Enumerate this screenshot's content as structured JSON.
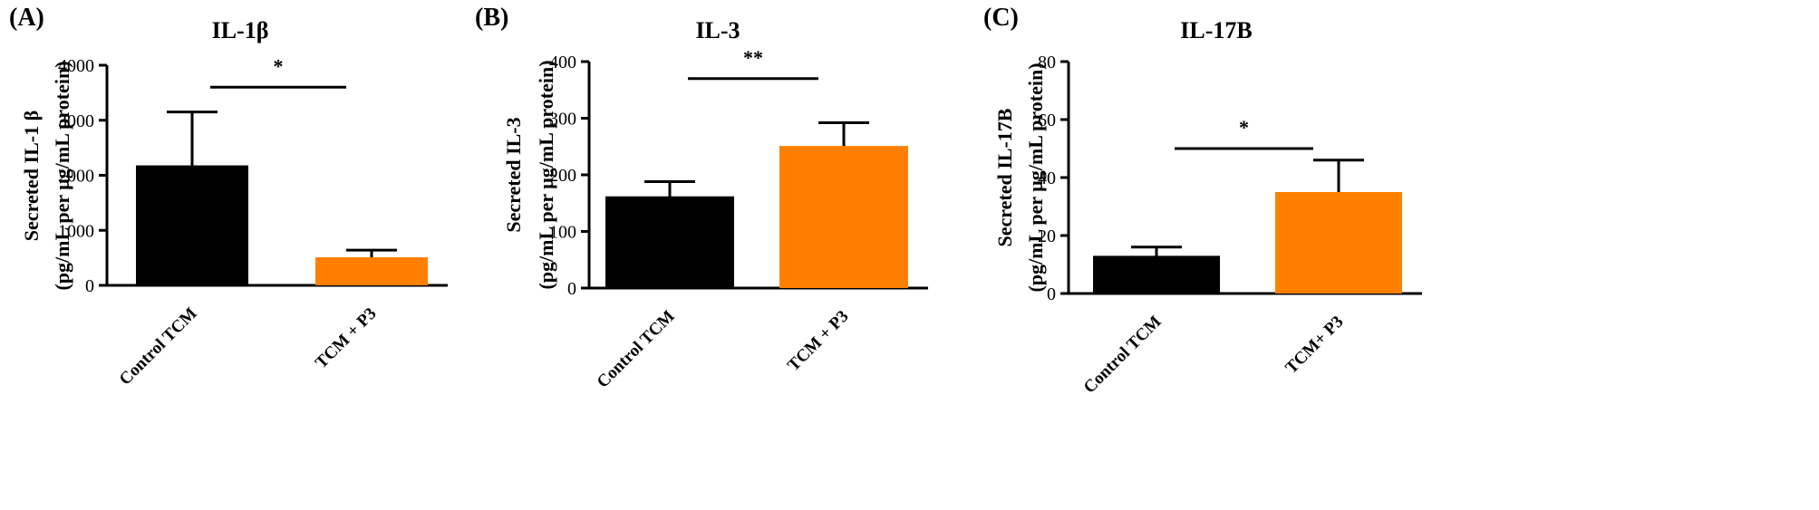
{
  "colors": {
    "control": "#000000",
    "treated": "#FF8000",
    "axis": "#000000"
  },
  "chart_data": [
    {
      "type": "bar",
      "panel": "(A)",
      "title": "IL-1β",
      "ylabel_line1": "Secreted IL-1 β",
      "ylabel_line2": "(pg/mL per μg/mL protein)",
      "categories": [
        "Control TCM",
        "TCM + P3"
      ],
      "values": [
        2180,
        510
      ],
      "errors": [
        970,
        130
      ],
      "ylim": [
        0,
        4000
      ],
      "yticks": [
        0,
        1000,
        2000,
        3000,
        4000
      ],
      "significance": "*",
      "sig_value": 3600
    },
    {
      "type": "bar",
      "panel": "(B)",
      "title": "IL-3",
      "ylabel_line1": "Secreted IL-3",
      "ylabel_line2": "(pg/mL per μg/mL protein)",
      "categories": [
        "Control TCM",
        "TCM + P3"
      ],
      "values": [
        162,
        251
      ],
      "errors": [
        26,
        41
      ],
      "ylim": [
        0,
        400
      ],
      "yticks": [
        0,
        100,
        200,
        300,
        400
      ],
      "significance": "**",
      "sig_value": 370
    },
    {
      "type": "bar",
      "panel": "(C)",
      "title": "IL-17B",
      "ylabel_line1": "Secreted IL-17B",
      "ylabel_line2": "(pg/mL per μg/mL protein)",
      "categories": [
        "Control TCM",
        "TCM+ P3"
      ],
      "values": [
        13,
        35
      ],
      "errors": [
        3,
        11
      ],
      "ylim": [
        0,
        80
      ],
      "yticks": [
        0,
        20,
        40,
        60,
        80
      ],
      "significance": "*",
      "sig_value": 50
    }
  ]
}
